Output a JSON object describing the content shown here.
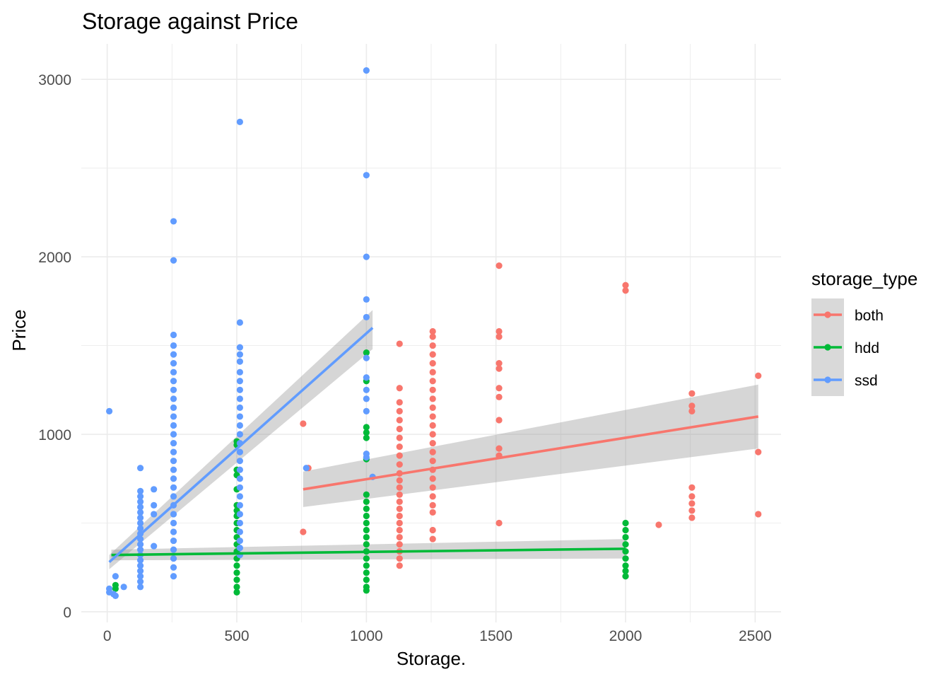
{
  "chart_data": {
    "type": "scatter",
    "title": "Storage against Price",
    "xlabel": "Storage.",
    "ylabel": "Price",
    "xlim": [
      -100,
      2600
    ],
    "ylim": [
      -60,
      3200
    ],
    "x_ticks": [
      0,
      500,
      1000,
      1500,
      2000,
      2500
    ],
    "y_ticks": [
      0,
      1000,
      2000,
      3000
    ],
    "grid": true,
    "legend": {
      "title": "storage_type",
      "placement": "right"
    },
    "series": [
      {
        "name": "both",
        "color": "#f8766d",
        "points": [
          [
            756,
            1060
          ],
          [
            756,
            450
          ],
          [
            776,
            810
          ],
          [
            1128,
            1510
          ],
          [
            1128,
            1260
          ],
          [
            1128,
            1180
          ],
          [
            1128,
            1130
          ],
          [
            1128,
            1080
          ],
          [
            1128,
            1030
          ],
          [
            1128,
            980
          ],
          [
            1128,
            930
          ],
          [
            1128,
            880
          ],
          [
            1128,
            830
          ],
          [
            1128,
            780
          ],
          [
            1128,
            740
          ],
          [
            1128,
            700
          ],
          [
            1128,
            660
          ],
          [
            1128,
            620
          ],
          [
            1128,
            580
          ],
          [
            1128,
            540
          ],
          [
            1128,
            500
          ],
          [
            1128,
            460
          ],
          [
            1128,
            420
          ],
          [
            1128,
            380
          ],
          [
            1128,
            340
          ],
          [
            1128,
            300
          ],
          [
            1128,
            260
          ],
          [
            1256,
            1580
          ],
          [
            1256,
            1550
          ],
          [
            1256,
            1500
          ],
          [
            1256,
            1450
          ],
          [
            1256,
            1400
          ],
          [
            1256,
            1350
          ],
          [
            1256,
            1300
          ],
          [
            1256,
            1250
          ],
          [
            1256,
            1200
          ],
          [
            1256,
            1150
          ],
          [
            1256,
            1100
          ],
          [
            1256,
            1050
          ],
          [
            1256,
            1000
          ],
          [
            1256,
            950
          ],
          [
            1256,
            900
          ],
          [
            1256,
            850
          ],
          [
            1256,
            800
          ],
          [
            1256,
            750
          ],
          [
            1256,
            700
          ],
          [
            1256,
            650
          ],
          [
            1256,
            600
          ],
          [
            1256,
            560
          ],
          [
            1256,
            460
          ],
          [
            1256,
            410
          ],
          [
            1512,
            1950
          ],
          [
            1512,
            1580
          ],
          [
            1512,
            1550
          ],
          [
            1512,
            1400
          ],
          [
            1512,
            1370
          ],
          [
            1512,
            1260
          ],
          [
            1512,
            1210
          ],
          [
            1512,
            1080
          ],
          [
            1512,
            920
          ],
          [
            1512,
            880
          ],
          [
            1512,
            500
          ],
          [
            2000,
            1840
          ],
          [
            2000,
            1810
          ],
          [
            2128,
            490
          ],
          [
            2256,
            1230
          ],
          [
            2256,
            1160
          ],
          [
            2256,
            1130
          ],
          [
            2256,
            700
          ],
          [
            2256,
            650
          ],
          [
            2256,
            610
          ],
          [
            2256,
            570
          ],
          [
            2256,
            530
          ],
          [
            2512,
            1330
          ],
          [
            2512,
            900
          ],
          [
            2512,
            550
          ]
        ],
        "trend": {
          "x": [
            756,
            2512
          ],
          "y": [
            690,
            1100
          ],
          "se_low": [
            590,
            920
          ],
          "se_high": [
            790,
            1280
          ]
        }
      },
      {
        "name": "hdd",
        "color": "#00ba38",
        "points": [
          [
            32,
            150
          ],
          [
            32,
            130
          ],
          [
            500,
            960
          ],
          [
            500,
            940
          ],
          [
            500,
            800
          ],
          [
            500,
            770
          ],
          [
            500,
            690
          ],
          [
            500,
            600
          ],
          [
            500,
            570
          ],
          [
            500,
            540
          ],
          [
            500,
            500
          ],
          [
            500,
            460
          ],
          [
            500,
            420
          ],
          [
            500,
            380
          ],
          [
            500,
            340
          ],
          [
            500,
            300
          ],
          [
            500,
            260
          ],
          [
            500,
            220
          ],
          [
            500,
            180
          ],
          [
            500,
            140
          ],
          [
            500,
            110
          ],
          [
            1000,
            1460
          ],
          [
            1000,
            1300
          ],
          [
            1000,
            1040
          ],
          [
            1000,
            1010
          ],
          [
            1000,
            980
          ],
          [
            1000,
            860
          ],
          [
            1000,
            660
          ],
          [
            1000,
            620
          ],
          [
            1000,
            580
          ],
          [
            1000,
            540
          ],
          [
            1000,
            500
          ],
          [
            1000,
            460
          ],
          [
            1000,
            420
          ],
          [
            1000,
            380
          ],
          [
            1000,
            340
          ],
          [
            1000,
            300
          ],
          [
            1000,
            260
          ],
          [
            1000,
            220
          ],
          [
            1000,
            180
          ],
          [
            1000,
            140
          ],
          [
            1000,
            120
          ],
          [
            2000,
            500
          ],
          [
            2000,
            460
          ],
          [
            2000,
            420
          ],
          [
            2000,
            380
          ],
          [
            2000,
            340
          ],
          [
            2000,
            300
          ],
          [
            2000,
            260
          ],
          [
            2000,
            230
          ],
          [
            2000,
            200
          ]
        ],
        "trend": {
          "x": [
            16,
            2000
          ],
          "y": [
            320,
            355
          ],
          "se_low": [
            290,
            300
          ],
          "se_high": [
            350,
            410
          ]
        }
      },
      {
        "name": "ssd",
        "color": "#619cff",
        "points": [
          [
            8,
            1130
          ],
          [
            8,
            130
          ],
          [
            8,
            110
          ],
          [
            24,
            100
          ],
          [
            32,
            90
          ],
          [
            32,
            200
          ],
          [
            64,
            140
          ],
          [
            128,
            810
          ],
          [
            128,
            680
          ],
          [
            128,
            650
          ],
          [
            128,
            620
          ],
          [
            128,
            590
          ],
          [
            128,
            560
          ],
          [
            128,
            530
          ],
          [
            128,
            500
          ],
          [
            128,
            470
          ],
          [
            128,
            440
          ],
          [
            128,
            410
          ],
          [
            128,
            380
          ],
          [
            128,
            350
          ],
          [
            128,
            320
          ],
          [
            128,
            290
          ],
          [
            128,
            260
          ],
          [
            128,
            230
          ],
          [
            128,
            200
          ],
          [
            128,
            170
          ],
          [
            128,
            140
          ],
          [
            180,
            690
          ],
          [
            180,
            600
          ],
          [
            180,
            550
          ],
          [
            180,
            370
          ],
          [
            256,
            2200
          ],
          [
            256,
            1980
          ],
          [
            256,
            1560
          ],
          [
            256,
            1500
          ],
          [
            256,
            1450
          ],
          [
            256,
            1400
          ],
          [
            256,
            1350
          ],
          [
            256,
            1300
          ],
          [
            256,
            1250
          ],
          [
            256,
            1200
          ],
          [
            256,
            1150
          ],
          [
            256,
            1100
          ],
          [
            256,
            1050
          ],
          [
            256,
            1000
          ],
          [
            256,
            950
          ],
          [
            256,
            900
          ],
          [
            256,
            850
          ],
          [
            256,
            800
          ],
          [
            256,
            750
          ],
          [
            256,
            700
          ],
          [
            256,
            650
          ],
          [
            256,
            600
          ],
          [
            256,
            550
          ],
          [
            256,
            500
          ],
          [
            256,
            450
          ],
          [
            256,
            400
          ],
          [
            256,
            350
          ],
          [
            256,
            300
          ],
          [
            256,
            250
          ],
          [
            256,
            200
          ],
          [
            512,
            2760
          ],
          [
            512,
            1630
          ],
          [
            512,
            1490
          ],
          [
            512,
            1450
          ],
          [
            512,
            1410
          ],
          [
            512,
            1350
          ],
          [
            512,
            1300
          ],
          [
            512,
            1250
          ],
          [
            512,
            1200
          ],
          [
            512,
            1150
          ],
          [
            512,
            1100
          ],
          [
            512,
            1050
          ],
          [
            512,
            1000
          ],
          [
            512,
            950
          ],
          [
            512,
            900
          ],
          [
            512,
            850
          ],
          [
            512,
            800
          ],
          [
            512,
            750
          ],
          [
            512,
            700
          ],
          [
            512,
            650
          ],
          [
            512,
            600
          ],
          [
            512,
            550
          ],
          [
            512,
            500
          ],
          [
            512,
            450
          ],
          [
            512,
            400
          ],
          [
            512,
            360
          ],
          [
            512,
            320
          ],
          [
            768,
            810
          ],
          [
            1000,
            3050
          ],
          [
            1000,
            2460
          ],
          [
            1000,
            2000
          ],
          [
            1000,
            1760
          ],
          [
            1000,
            1660
          ],
          [
            1000,
            1430
          ],
          [
            1000,
            1320
          ],
          [
            1000,
            1250
          ],
          [
            1000,
            1200
          ],
          [
            1000,
            1130
          ],
          [
            1000,
            890
          ],
          [
            1000,
            870
          ],
          [
            1024,
            760
          ]
        ],
        "trend": {
          "x": [
            8,
            1024
          ],
          "y": [
            280,
            1600
          ],
          "se_low": [
            240,
            1480
          ],
          "se_high": [
            320,
            1700
          ]
        }
      }
    ]
  }
}
